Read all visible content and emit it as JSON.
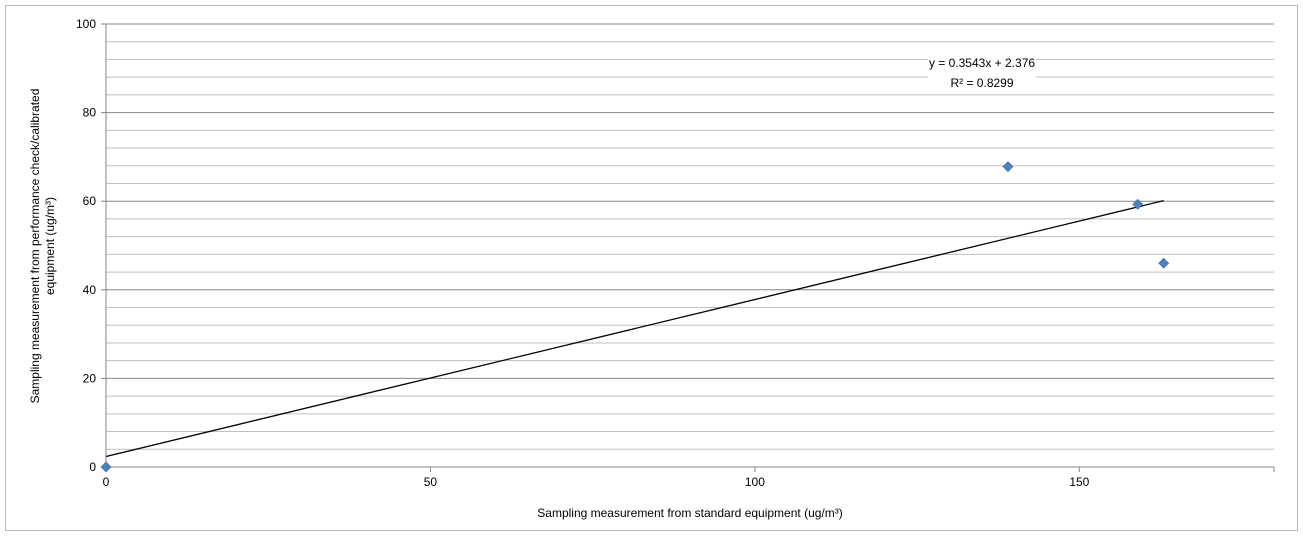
{
  "chart_data": {
    "type": "scatter",
    "xlabel": "Sampling measurement from standard equipment  (ug/m³)",
    "ylabel_lines": [
      "Sampling measurement from performance check/calibrated",
      "equipment (ug/m³)"
    ],
    "xlim": [
      0,
      180
    ],
    "ylim": [
      0,
      100
    ],
    "x_ticks": [
      0,
      50,
      100,
      150
    ],
    "y_ticks": [
      0,
      20,
      40,
      60,
      80,
      100
    ],
    "x_tick_labels": [
      "0",
      "50",
      "100",
      "150"
    ],
    "y_tick_labels": [
      "0",
      "20",
      "40",
      "60",
      "80",
      "100"
    ],
    "minor_y_step": 4,
    "grid": true,
    "series": [
      {
        "points": [
          {
            "x": 0,
            "y": 0
          },
          {
            "x": 139,
            "y": 67.8
          },
          {
            "x": 159,
            "y": 59.3
          },
          {
            "x": 163,
            "y": 46.0
          }
        ],
        "marker": "diamond",
        "color": "#4f81bd"
      }
    ],
    "trendline": {
      "slope": 0.3543,
      "intercept": 2.376,
      "x_range": [
        0,
        163
      ],
      "color": "#000000",
      "equation_label": "y = 0.3543x + 2.376",
      "r2_label": "R² = 0.8299"
    }
  }
}
